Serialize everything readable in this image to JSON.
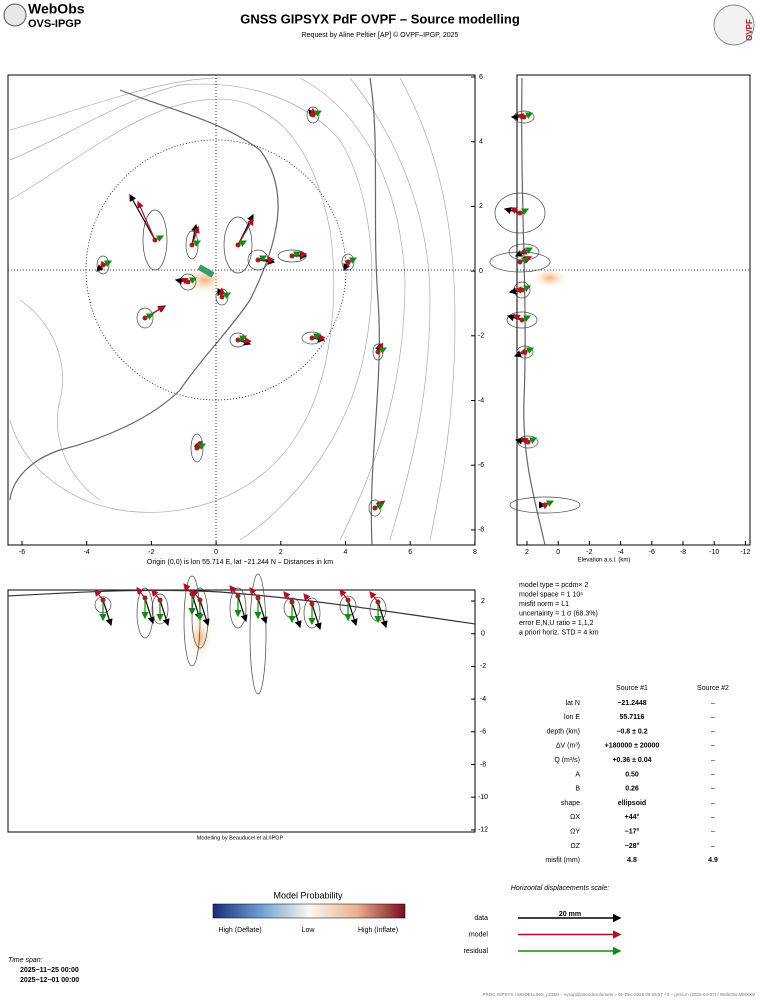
{
  "header": {
    "logo_top": "WebObs",
    "logo_bottom": "OVS-IPGP",
    "title": "GNSS GIPSYX PdF OVPF – Source modelling",
    "subtitle": "Request by Aline Peltier [AP] © OVPF–IPGP, 2025",
    "right_logo": "OVPF"
  },
  "map": {
    "xticks": [
      -6,
      -4,
      -2,
      0,
      2,
      4,
      6,
      8
    ],
    "yticks": [
      6,
      4,
      2,
      0,
      -2,
      -4,
      -6,
      -8
    ],
    "caption": "Origin (0,0) is lon 55.714 E, lat −21.244 N – Distances in km"
  },
  "elevation": {
    "xticks": [
      2,
      0,
      -2,
      -4,
      -6,
      -8,
      -10,
      -12
    ],
    "xlabel": "Elevation a.s.l. (km)"
  },
  "section": {
    "yticks": [
      2,
      0,
      -2,
      -4,
      -6,
      -8,
      -10,
      -12
    ],
    "credit": "Modelling by Beauducel et al./IPGP"
  },
  "parameters": [
    "model type = pcdm× 2",
    "model space = 1 10⁶",
    "misfit norm = L1",
    "uncertainty = 1 σ (68.3%)",
    "error E,N,U ratio = 1,1,2",
    "a priori horiz. STD = 4 km"
  ],
  "table": {
    "columns": [
      "Source #1",
      "Source #2"
    ],
    "rows": [
      [
        "lat N",
        "−21.2448",
        "–"
      ],
      [
        "lon E",
        "55.7116",
        "–"
      ],
      [
        "depth (km)",
        "−0.8 ± 0.2",
        "–"
      ],
      [
        "ΔV (m³)",
        "+180000 ± 20000",
        "–"
      ],
      [
        "Q (m³/s)",
        "+0.36 ± 0.04",
        "–"
      ],
      [
        "A",
        "0.50",
        "–"
      ],
      [
        "B",
        "0.26",
        "–"
      ],
      [
        "shape",
        "ellipsoid",
        "–"
      ],
      [
        "ΩX",
        "+44°",
        "–"
      ],
      [
        "ΩY",
        "−17°",
        "–"
      ],
      [
        "ΩZ",
        "−28°",
        "–"
      ],
      [
        "misfit (mm)",
        "4.8",
        "4.9"
      ]
    ]
  },
  "colorbar": {
    "title": "Model Probability",
    "labels": [
      "High (Deflate)",
      "Low",
      "High (Inflate)"
    ]
  },
  "scale": {
    "title": "Horizontal displacements scale:",
    "length": "20 mm",
    "items": [
      "data",
      "model",
      "residual"
    ]
  },
  "time_span": {
    "label": "Time span:",
    "start": "2025−11−25 00:00",
    "end": "2025−12−01 00:00"
  },
  "footer": "PROC.GIPSYX / MODELLING_pCDM – sysop@pitondesolumets – 01-Dec-2025 06:25:57 +0 – gnss.m (2025-04-07) / WebObs MMXXV"
}
